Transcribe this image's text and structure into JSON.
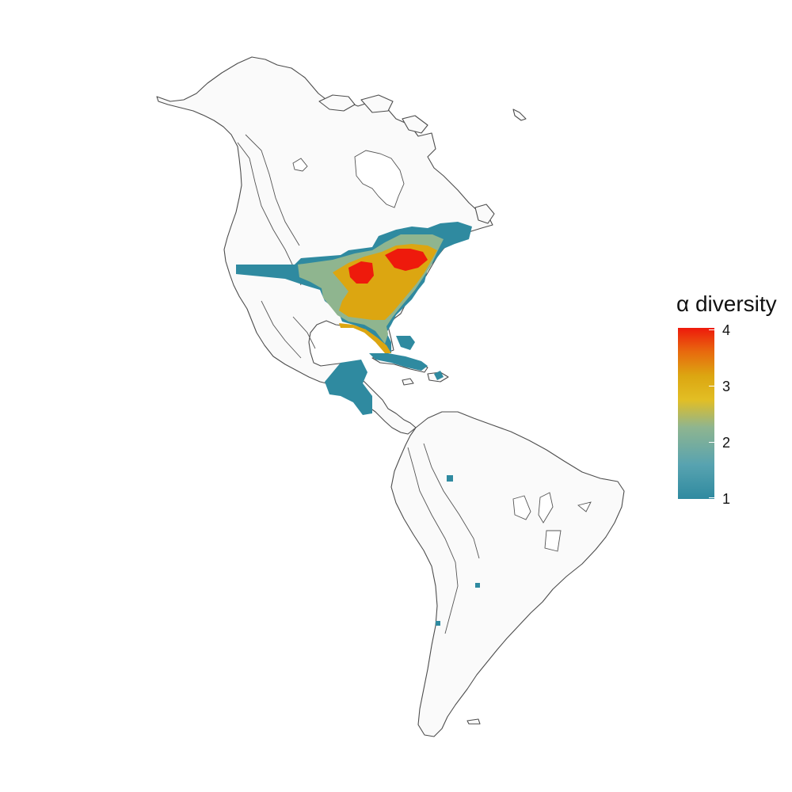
{
  "legend": {
    "title": "α diversity",
    "ticks": [
      "4",
      "3",
      "2",
      "1"
    ],
    "scale_min": 1,
    "scale_max": 4,
    "colors": {
      "low": "#2f8aa0",
      "mid": "#8fb58f",
      "high_mid": "#dca611",
      "high": "#ee1a0c"
    }
  },
  "map": {
    "region": "Americas",
    "land_fill": "#fafafa",
    "outline_color": "#4d4d4d"
  }
}
